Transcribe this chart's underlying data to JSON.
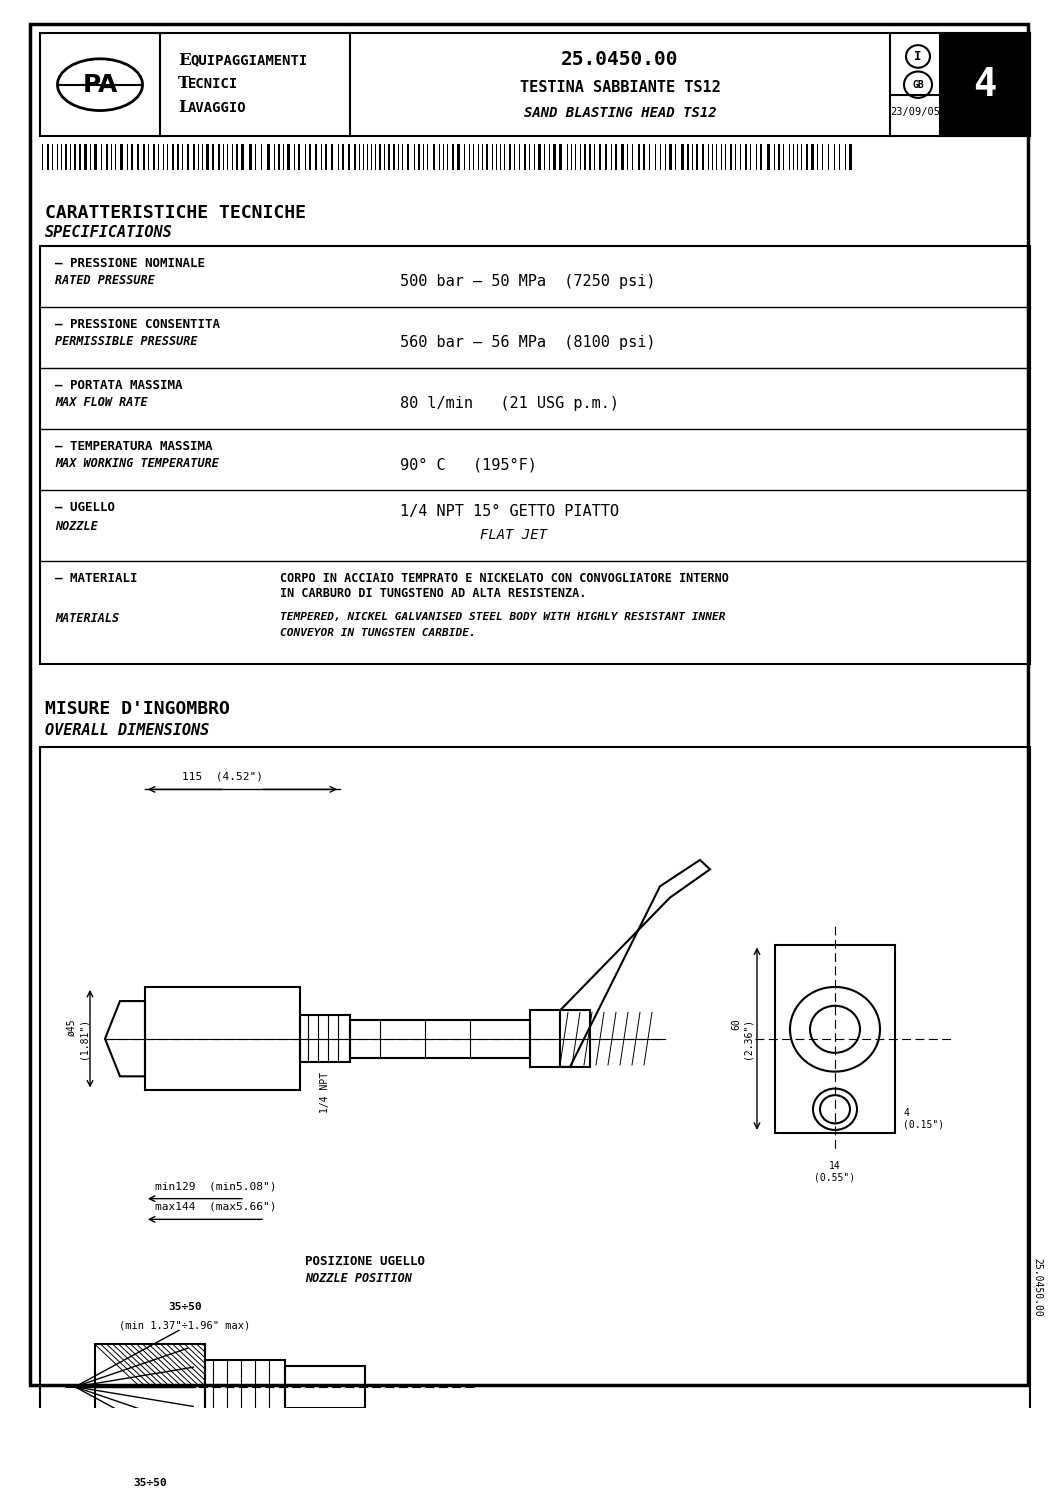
{
  "page_width": 10.58,
  "page_height": 14.97,
  "bg_color": "#ffffff",
  "border_color": "#000000",
  "title_block": {
    "company": "PA",
    "line1": "EQUIPAGGIAMENTI",
    "line2": "TECNICI",
    "line3": "LAVAGGIO",
    "doc_number": "25.0450.00",
    "product_it": "TESTINA SABBIANTE TS12",
    "product_en": "SAND BLASTING HEAD TS12",
    "date": "23/09/05",
    "sheet": "4"
  },
  "specs_title_it": "CARATTERISTICHE TECNICHE",
  "specs_title_en": "SPECIFICATIONS",
  "specs": [
    {
      "label_it": "– PRESSIONE NOMINALE",
      "label_en": "RATED PRESSURE",
      "value": "500 bar – 50 MPa  (7250 psi)"
    },
    {
      "label_it": "– PRESSIONE CONSENTITA",
      "label_en": "PERMISSIBLE PRESSURE",
      "value": "560 bar – 56 MPa  (8100 psi)"
    },
    {
      "label_it": "– PORTATA MASSIMA",
      "label_en": "MAX FLOW RATE",
      "value": "80 l/min   (21 USG p.m.)"
    },
    {
      "label_it": "– TEMPERATURA MASSIMA",
      "label_en": "MAX WORKING TEMPERATURE",
      "value": "90° C   (195°F)"
    },
    {
      "label_it": "– UGELLO",
      "label_en": "NOZZLE",
      "value_it": "1/4 NPT 15° GETTO PIATTO",
      "value_en": "FLAT JET"
    },
    {
      "label_it": "– MATERIALI",
      "label_en": "MATERIALS",
      "value_it1": "CORPO IN ACCIAIO TEMPRATO E NICKELATO CON CONVOGLIATORE INTERNO",
      "value_it2": "IN CARBURO DI TUNGSTENO AD ALTA RESISTENZA.",
      "value_en1": "TEMPERED, NICKEL GALVANISED STEEL BODY WITH HIGHLY RESISTANT INNER",
      "value_en2": "CONVEYOR IN TUNGSTEN CARBIDE."
    }
  ],
  "dim_title_it": "MISURE D'INGOMBRO",
  "dim_title_en": "OVERALL DIMENSIONS"
}
